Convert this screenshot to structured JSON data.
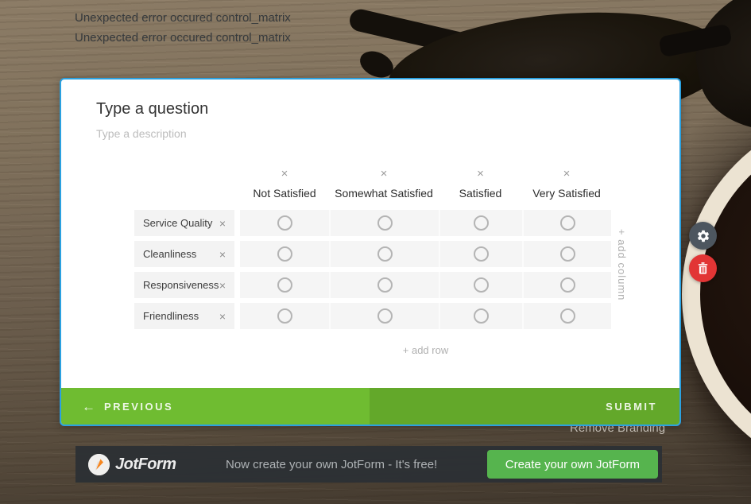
{
  "errors": [
    "Unexpected error occured control_matrix",
    "Unexpected error occured control_matrix"
  ],
  "card": {
    "question_placeholder": "Type a question",
    "description_placeholder": "Type a description",
    "matrix": {
      "columns": [
        "Not Satisfied",
        "Somewhat Satisfied",
        "Satisfied",
        "Very Satisfied"
      ],
      "rows": [
        "Service Quality",
        "Cleanliness",
        "Responsiveness",
        "Friendliness"
      ],
      "delete_icon": "×",
      "add_row_label": "+ add row",
      "add_column_label": "+ add column"
    },
    "footer": {
      "previous_arrow": "←",
      "previous_label": "PREVIOUS",
      "submit_label": "SUBMIT"
    }
  },
  "side_toolbar": {
    "settings_icon": "gear-icon",
    "delete_icon": "trash-icon"
  },
  "remove_branding_label": "Remove Branding",
  "bottom_bar": {
    "brand": "JotForm",
    "promo_text": "Now create your own JotForm - It's free!",
    "cta_label": "Create your own JotForm"
  },
  "colors": {
    "accent_blue": "#2ba1e0",
    "footer_green_left": "#6fbc31",
    "footer_green_right": "#63a82a",
    "cta_green": "#56b44e",
    "danger_red": "#e23535",
    "settings_gray": "#4d565f"
  }
}
